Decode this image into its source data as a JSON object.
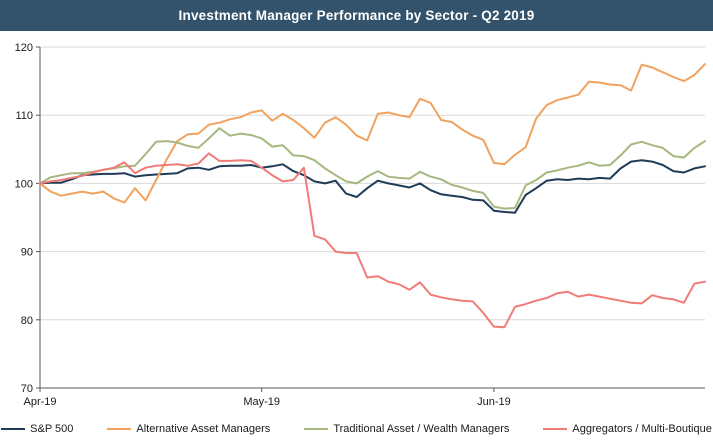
{
  "title": "Investment Manager Performance by Sector - Q2 2019",
  "title_bar_color": "#33526b",
  "chart_data": {
    "type": "line",
    "title": "Investment Manager Performance by Sector - Q2 2019",
    "xlabel": "",
    "ylabel": "",
    "ylim": [
      70,
      120
    ],
    "y_ticks": [
      70,
      80,
      90,
      100,
      110,
      120
    ],
    "x_ticks": [
      {
        "label": "Apr-19",
        "index": 0
      },
      {
        "label": "May-19",
        "index": 21
      },
      {
        "label": "Jun-19",
        "index": 43
      }
    ],
    "grid": true,
    "grid_color": "#d9d9d9",
    "axis_color": "#595959",
    "legend_position": "bottom",
    "index_base": 100,
    "series": [
      {
        "name": "S&P 500",
        "color": "#1f3b57",
        "values": [
          100.0,
          100.1,
          100.1,
          100.6,
          101.2,
          101.3,
          101.4,
          101.4,
          101.5,
          101.0,
          101.2,
          101.3,
          101.4,
          101.5,
          102.2,
          102.3,
          102.0,
          102.5,
          102.6,
          102.6,
          102.7,
          102.3,
          102.5,
          102.8,
          101.8,
          101.2,
          100.3,
          100.0,
          100.4,
          98.5,
          98.0,
          99.3,
          100.4,
          100.0,
          99.7,
          99.4,
          100.0,
          99.0,
          98.4,
          98.2,
          98.0,
          97.6,
          97.5,
          96.0,
          95.8,
          95.7,
          98.3,
          99.3,
          100.4,
          100.6,
          100.5,
          100.7,
          100.6,
          100.8,
          100.7,
          102.2,
          103.2,
          103.4,
          103.2,
          102.7,
          101.8,
          101.6,
          102.2,
          102.5
        ]
      },
      {
        "name": "Alternative Asset Managers",
        "color": "#f2a25f",
        "values": [
          100.0,
          98.8,
          98.2,
          98.5,
          98.8,
          98.5,
          98.8,
          97.8,
          97.2,
          99.3,
          97.5,
          100.5,
          103.5,
          106.2,
          107.2,
          107.3,
          108.6,
          108.9,
          109.4,
          109.7,
          110.4,
          110.7,
          109.2,
          110.2,
          109.3,
          108.1,
          106.7,
          108.9,
          109.7,
          108.6,
          107.0,
          106.3,
          110.2,
          110.4,
          110.0,
          109.7,
          112.4,
          111.8,
          109.3,
          109.0,
          107.9,
          107.0,
          106.4,
          103.0,
          102.8,
          104.2,
          105.3,
          109.5,
          111.5,
          112.2,
          112.6,
          113.0,
          114.9,
          114.8,
          114.5,
          114.4,
          113.6,
          117.4,
          117.0,
          116.3,
          115.6,
          115.0,
          115.9,
          117.5
        ]
      },
      {
        "name": "Traditional Asset / Wealth Managers",
        "color": "#a6b87f",
        "values": [
          100.0,
          100.9,
          101.2,
          101.5,
          101.5,
          101.7,
          102.0,
          102.2,
          102.5,
          102.6,
          104.3,
          106.1,
          106.2,
          106.0,
          105.5,
          105.2,
          106.6,
          108.1,
          107.0,
          107.3,
          107.1,
          106.6,
          105.4,
          105.6,
          104.1,
          104.0,
          103.4,
          102.2,
          101.2,
          100.3,
          100.0,
          101.0,
          101.8,
          101.0,
          100.8,
          100.7,
          101.7,
          101.0,
          100.6,
          99.8,
          99.4,
          98.9,
          98.6,
          96.6,
          96.3,
          96.4,
          99.7,
          100.5,
          101.6,
          101.9,
          102.3,
          102.6,
          103.1,
          102.6,
          102.7,
          104.1,
          105.7,
          106.1,
          105.6,
          105.2,
          104.0,
          103.8,
          105.2,
          106.2
        ]
      },
      {
        "name": "Aggregators / Multi-Boutique",
        "color": "#f07c78",
        "values": [
          100.0,
          100.3,
          100.5,
          100.8,
          101.1,
          101.6,
          102.0,
          102.3,
          103.1,
          101.5,
          102.3,
          102.6,
          102.7,
          102.8,
          102.6,
          102.9,
          104.4,
          103.3,
          103.3,
          103.4,
          103.3,
          102.3,
          101.2,
          100.3,
          100.5,
          102.3,
          92.3,
          91.8,
          90.0,
          89.8,
          89.8,
          86.2,
          86.4,
          85.6,
          85.2,
          84.4,
          85.5,
          83.7,
          83.3,
          83.0,
          82.8,
          82.7,
          81.0,
          79.0,
          78.9,
          81.9,
          82.3,
          82.8,
          83.2,
          83.9,
          84.1,
          83.4,
          83.7,
          83.4,
          83.1,
          82.8,
          82.5,
          82.4,
          83.6,
          83.2,
          83.0,
          82.5,
          85.3,
          85.6
        ]
      }
    ]
  }
}
